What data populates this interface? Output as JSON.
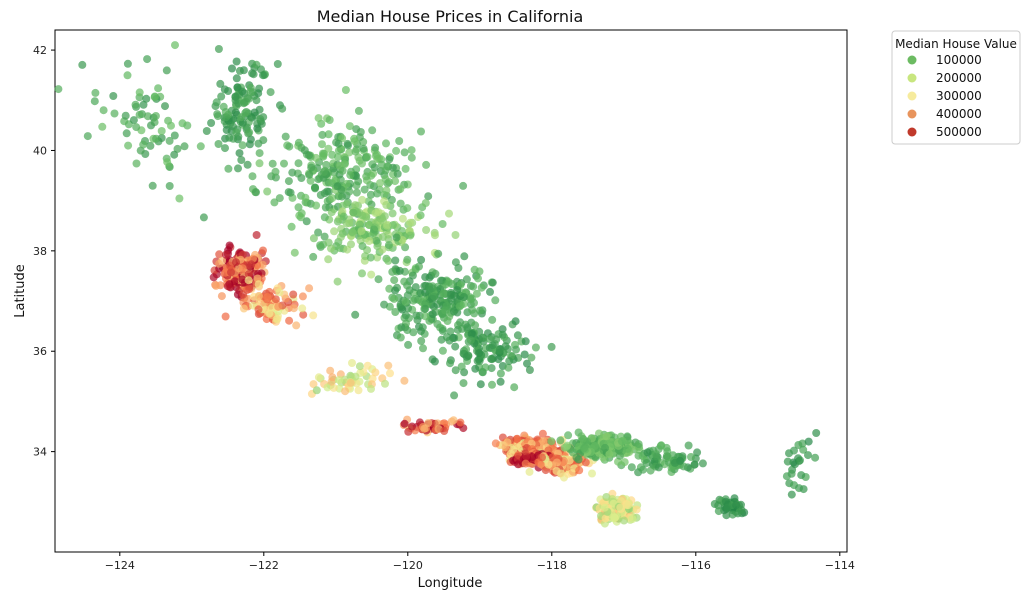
{
  "chart_data": {
    "type": "scatter",
    "title": "Median House Prices in California",
    "xlabel": "Longitude",
    "ylabel": "Latitude",
    "xlim": [
      -124.9,
      -113.9
    ],
    "ylim": [
      32.0,
      42.4
    ],
    "xticks": [
      -124,
      -122,
      -120,
      -118,
      -116,
      -114
    ],
    "xtick_labels": [
      "−124",
      "−122",
      "−120",
      "−118",
      "−116",
      "−114"
    ],
    "yticks": [
      34,
      36,
      38,
      40,
      42
    ],
    "ytick_labels": [
      "34",
      "36",
      "38",
      "40",
      "42"
    ],
    "grid": false,
    "legend": {
      "title": "Median House Value",
      "placement": "outside-top-right",
      "entries": [
        {
          "label": "100000",
          "color": "#6cbb62"
        },
        {
          "label": "200000",
          "color": "#c8e67f"
        },
        {
          "label": "300000",
          "color": "#f6eb9d"
        },
        {
          "label": "400000",
          "color": "#e8945d"
        },
        {
          "label": "500000",
          "color": "#c0392b"
        }
      ]
    },
    "colormap": "RdYlGn_r",
    "value_range": [
      15000,
      500001
    ],
    "region_clusters": [
      {
        "center": [
          -122.3,
          40.8
        ],
        "spread": [
          0.35,
          0.8
        ],
        "count": 120,
        "value": 90000
      },
      {
        "center": [
          -123.6,
          40.6
        ],
        "spread": [
          0.6,
          0.9
        ],
        "count": 70,
        "value": 110000
      },
      {
        "center": [
          -121.0,
          39.5
        ],
        "spread": [
          0.9,
          0.9
        ],
        "count": 260,
        "value": 120000
      },
      {
        "center": [
          -120.5,
          38.4
        ],
        "spread": [
          0.7,
          0.5
        ],
        "count": 160,
        "value": 160000
      },
      {
        "center": [
          -119.6,
          37.0
        ],
        "spread": [
          0.6,
          0.6
        ],
        "count": 220,
        "value": 100000
      },
      {
        "center": [
          -118.9,
          36.0
        ],
        "spread": [
          0.6,
          0.5
        ],
        "count": 120,
        "value": 90000
      },
      {
        "center": [
          -122.3,
          37.6
        ],
        "spread": [
          0.25,
          0.35
        ],
        "count": 190,
        "value": 420000
      },
      {
        "center": [
          -121.9,
          36.9
        ],
        "spread": [
          0.35,
          0.3
        ],
        "count": 80,
        "value": 330000
      },
      {
        "center": [
          -120.8,
          35.4
        ],
        "spread": [
          0.4,
          0.3
        ],
        "count": 50,
        "value": 250000
      },
      {
        "center": [
          -119.7,
          34.5
        ],
        "spread": [
          0.35,
          0.12
        ],
        "count": 50,
        "value": 420000
      },
      {
        "center": [
          -118.3,
          34.05
        ],
        "spread": [
          0.3,
          0.18
        ],
        "count": 300,
        "value": 330000
      },
      {
        "center": [
          -118.2,
          33.85
        ],
        "spread": [
          0.25,
          0.1
        ],
        "count": 120,
        "value": 480000
      },
      {
        "center": [
          -117.8,
          33.75
        ],
        "spread": [
          0.25,
          0.15
        ],
        "count": 140,
        "value": 330000
      },
      {
        "center": [
          -117.3,
          34.1
        ],
        "spread": [
          0.4,
          0.2
        ],
        "count": 200,
        "value": 130000
      },
      {
        "center": [
          -117.1,
          32.85
        ],
        "spread": [
          0.2,
          0.2
        ],
        "count": 160,
        "value": 250000
      },
      {
        "center": [
          -116.4,
          33.8
        ],
        "spread": [
          0.4,
          0.2
        ],
        "count": 70,
        "value": 100000
      },
      {
        "center": [
          -115.5,
          32.9
        ],
        "spread": [
          0.2,
          0.15
        ],
        "count": 40,
        "value": 80000
      },
      {
        "center": [
          -114.6,
          33.8
        ],
        "spread": [
          0.2,
          0.5
        ],
        "count": 25,
        "value": 80000
      }
    ]
  }
}
